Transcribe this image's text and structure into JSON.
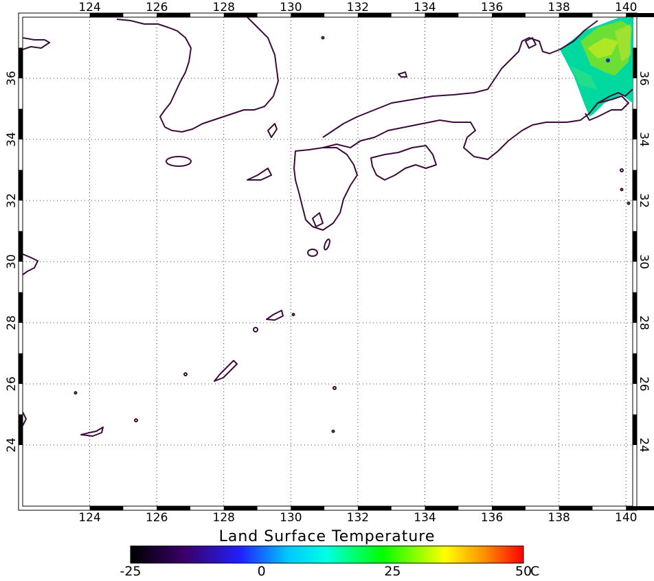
{
  "map": {
    "title": "Land Surface Temperature",
    "lon_range": [
      122,
      140.2
    ],
    "lat_range": [
      22,
      38
    ],
    "lon_ticks": [
      "124",
      "126",
      "128",
      "130",
      "132",
      "134",
      "136",
      "138",
      "140"
    ],
    "lat_ticks": [
      "24",
      "26",
      "28",
      "30",
      "32",
      "34",
      "36"
    ],
    "gridlines": "dotted",
    "data_region": "swath near 138-140E, 35-38N (central Honshu)"
  },
  "colorbar": {
    "ticks": [
      "-25",
      "0",
      "25",
      "50"
    ],
    "unit": "C",
    "range": [
      -25,
      50
    ],
    "colors": [
      "#000000",
      "#4b0082",
      "#0000ff",
      "#00ffff",
      "#00ff00",
      "#ffff00",
      "#ff8000",
      "#ff0000"
    ]
  },
  "colors": {
    "coastline": "#3a0a3a",
    "swath_main": "#00d8a0",
    "swath_warm": "#a0e000"
  }
}
